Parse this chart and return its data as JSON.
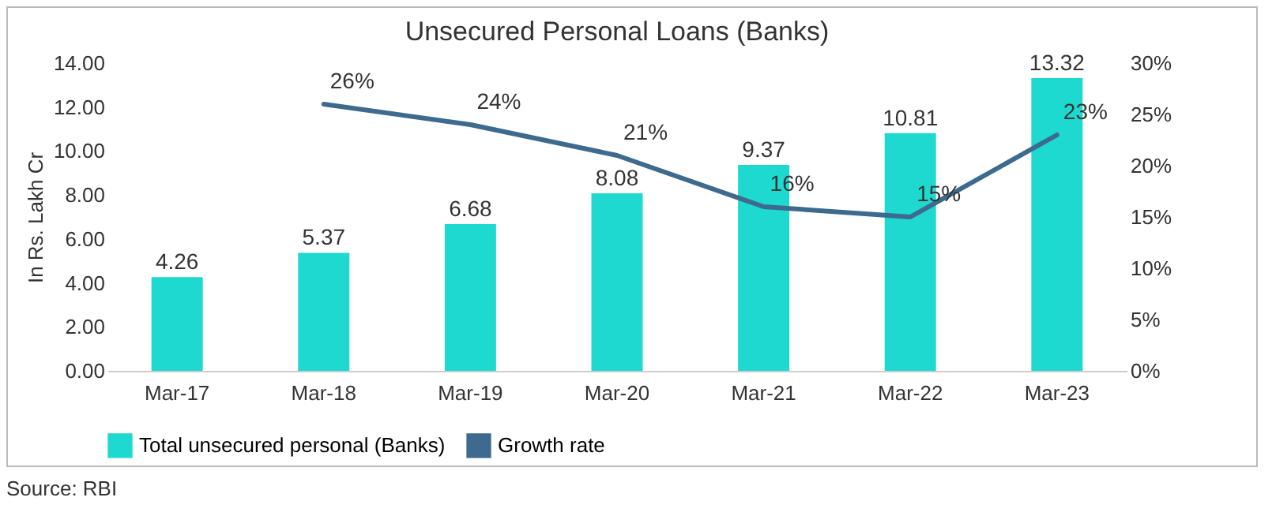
{
  "chart_data": {
    "type": "bar",
    "title": "Unsecured Personal Loans (Banks)",
    "ylabel": "In Rs. Lakh Cr",
    "categories": [
      "Mar-17",
      "Mar-18",
      "Mar-19",
      "Mar-20",
      "Mar-21",
      "Mar-22",
      "Mar-23"
    ],
    "series": [
      {
        "name": "Total unsecured personal (Banks)",
        "color": "#1dd9cf",
        "values": [
          4.26,
          5.37,
          6.68,
          8.08,
          9.37,
          10.81,
          13.32
        ],
        "value_labels": [
          "4.26",
          "5.37",
          "6.68",
          "8.08",
          "9.37",
          "10.81",
          "13.32"
        ]
      },
      {
        "name": "Growth rate",
        "type": "line",
        "axis": "y2",
        "color": "#3d6a8e",
        "values": [
          null,
          26,
          24,
          21,
          16,
          15,
          23
        ],
        "value_labels": [
          null,
          "26%",
          "24%",
          "21%",
          "16%",
          "15%",
          "23%"
        ]
      }
    ],
    "ylim": [
      0,
      14
    ],
    "yticks": [
      {
        "value": 0,
        "label": "0.00"
      },
      {
        "value": 2,
        "label": "2.00"
      },
      {
        "value": 4,
        "label": "4.00"
      },
      {
        "value": 6,
        "label": "6.00"
      },
      {
        "value": 8,
        "label": "8.00"
      },
      {
        "value": 10,
        "label": "10.00"
      },
      {
        "value": 12,
        "label": "12.00"
      },
      {
        "value": 14,
        "label": "14.00"
      }
    ],
    "y2lim": [
      0,
      30
    ],
    "y2ticks": [
      {
        "value": 0,
        "label": "0%"
      },
      {
        "value": 5,
        "label": "5%"
      },
      {
        "value": 10,
        "label": "10%"
      },
      {
        "value": 15,
        "label": "15%"
      },
      {
        "value": 20,
        "label": "20%"
      },
      {
        "value": 25,
        "label": "25%"
      },
      {
        "value": 30,
        "label": "30%"
      }
    ],
    "legend": "bottom",
    "annotations": [
      "Source: RBI"
    ]
  }
}
